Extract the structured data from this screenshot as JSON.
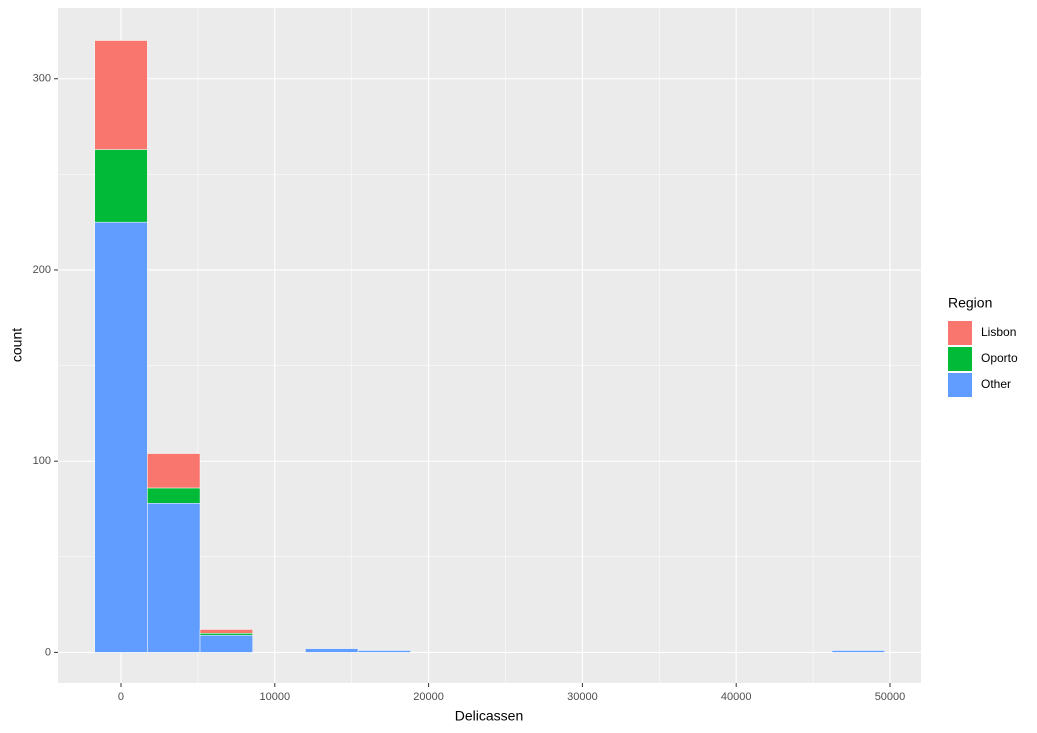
{
  "chart_data": {
    "type": "histogram",
    "x_label": "Delicassen",
    "y_label": "count",
    "legend_title": "Region",
    "bins": [
      -1709,
      1715,
      5139,
      8564,
      11988,
      15412,
      18837,
      22261,
      25685,
      29110,
      32534,
      35958,
      39383,
      42807,
      46231,
      49655
    ],
    "series": [
      {
        "name": "Lisbon",
        "color": "#F8766D",
        "values": [
          57,
          18,
          2,
          0,
          0,
          0,
          0,
          0,
          0,
          0,
          0,
          0,
          0,
          0,
          0
        ]
      },
      {
        "name": "Oporto",
        "color": "#00BA38",
        "values": [
          38,
          8,
          1,
          0,
          0,
          0,
          0,
          0,
          0,
          0,
          0,
          0,
          0,
          0,
          0
        ]
      },
      {
        "name": "Other",
        "color": "#619CFF",
        "values": [
          225,
          78,
          9,
          0,
          2,
          1,
          0,
          0,
          0,
          0,
          0,
          0,
          0,
          0,
          1
        ]
      }
    ],
    "xlim": [
      -4096,
      52016
    ],
    "ylim": [
      -16,
      337
    ],
    "xticks": [
      0,
      10000,
      20000,
      30000,
      40000,
      50000
    ],
    "yticks": [
      0,
      100,
      200,
      300
    ],
    "xminor": [
      5000,
      15000,
      25000,
      35000,
      45000
    ],
    "yminor": [
      50,
      150,
      250
    ],
    "grid": true,
    "legend": "right"
  }
}
